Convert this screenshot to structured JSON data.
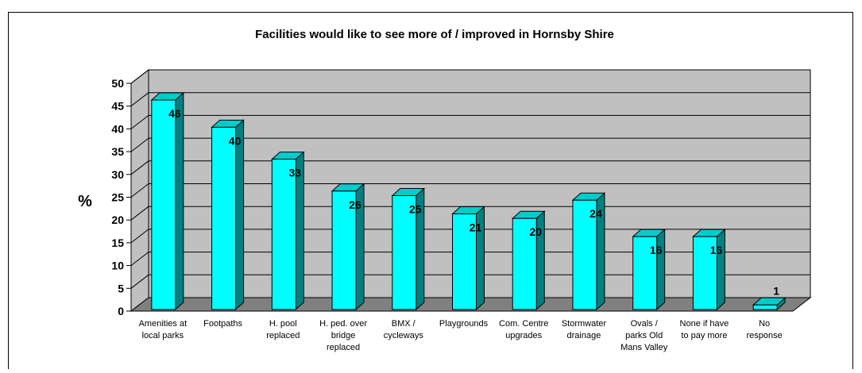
{
  "chart_data": {
    "type": "bar",
    "title": "Facilities would like to see more of / improved in Hornsby Shire",
    "ylabel": "%",
    "xlabel": "",
    "ylim": [
      0,
      50
    ],
    "yticks": [
      0,
      5,
      10,
      15,
      20,
      25,
      30,
      35,
      40,
      45,
      50
    ],
    "grid": true,
    "categories": [
      [
        "Amenities at",
        "local parks"
      ],
      [
        "Footpaths"
      ],
      [
        "H. pool",
        "replaced"
      ],
      [
        "H. ped. over",
        "bridge",
        "replaced"
      ],
      [
        "BMX /",
        "cycleways"
      ],
      [
        "Playgrounds"
      ],
      [
        "Com. Centre",
        "upgrades"
      ],
      [
        "Stormwater",
        "drainage"
      ],
      [
        "Ovals /",
        "parks Old",
        "Mans Valley"
      ],
      [
        "None if have",
        "to pay more"
      ],
      [
        "No",
        "response"
      ]
    ],
    "values": [
      46,
      40,
      33,
      26,
      25,
      21,
      20,
      24,
      16,
      16,
      1
    ],
    "colors": {
      "bar_front": "#00FFFF",
      "bar_side": "#008080",
      "bar_top": "#00CCCC",
      "wall": "#C0C0C0",
      "floor": "#808080",
      "grid": "#000000"
    }
  }
}
